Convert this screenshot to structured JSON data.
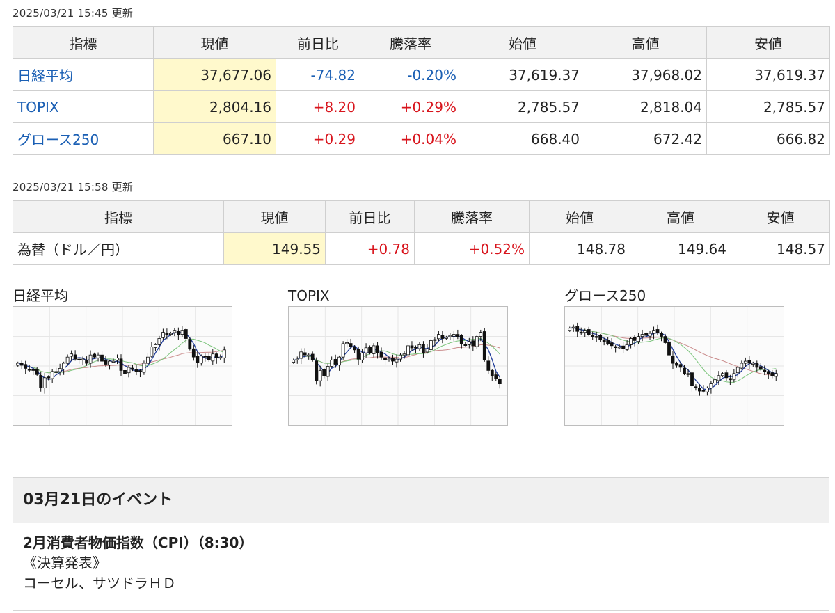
{
  "stock_table": {
    "updated": "2025/03/21 15:45 更新",
    "headers": [
      "指標",
      "現値",
      "前日比",
      "騰落率",
      "始値",
      "高値",
      "安値"
    ],
    "rows": [
      {
        "name": "日経平均",
        "current": "37,677.06",
        "change": "-74.82",
        "rate": "-0.20%",
        "open": "37,619.37",
        "high": "37,968.02",
        "low": "37,619.37"
      },
      {
        "name": "TOPIX",
        "current": "2,804.16",
        "change": "+8.20",
        "rate": "+0.29%",
        "open": "2,785.57",
        "high": "2,818.04",
        "low": "2,785.57"
      },
      {
        "name": "グロース250",
        "current": "667.10",
        "change": "+0.29",
        "rate": "+0.04%",
        "open": "668.40",
        "high": "672.42",
        "low": "666.82"
      }
    ]
  },
  "fx_table": {
    "updated": "2025/03/21 15:58 更新",
    "headers": [
      "指標",
      "現値",
      "前日比",
      "騰落率",
      "始値",
      "高値",
      "安値"
    ],
    "rows": [
      {
        "name": "為替（ドル／円）",
        "current": "149.55",
        "change": "+0.78",
        "rate": "+0.52%",
        "open": "148.78",
        "high": "149.64",
        "low": "148.57"
      }
    ]
  },
  "colors": {
    "up": "#d8141c",
    "down": "#1a5fb4",
    "current_bg": "#fff9cc",
    "ma_short": "#1f3b99",
    "ma_mid": "#7cc47c",
    "ma_long": "#c98a8a"
  },
  "chart_data": [
    {
      "type": "candlestick",
      "title": "日経平均",
      "close": [
        52,
        50,
        47,
        46,
        45,
        41,
        28,
        38,
        38,
        44,
        43,
        47,
        52,
        58,
        61,
        56,
        55,
        56,
        52,
        60,
        58,
        60,
        54,
        51,
        54,
        54,
        57,
        45,
        42,
        48,
        46,
        44,
        44,
        52,
        58,
        68,
        70,
        76,
        82,
        80,
        81,
        84,
        80,
        84,
        76,
        66,
        58,
        53,
        59,
        58,
        55,
        61,
        57,
        58,
        65
      ]
    },
    {
      "type": "candlestick",
      "title": "TOPIX",
      "close": [
        55,
        56,
        63,
        60,
        60,
        55,
        35,
        45,
        40,
        49,
        55,
        51,
        58,
        71,
        72,
        68,
        65,
        56,
        62,
        67,
        62,
        69,
        62,
        58,
        55,
        56,
        54,
        56,
        60,
        61,
        69,
        67,
        67,
        70,
        62,
        66,
        74,
        75,
        80,
        76,
        77,
        79,
        80,
        78,
        71,
        70,
        73,
        69,
        78,
        82,
        55,
        45,
        40,
        37,
        32
      ]
    },
    {
      "type": "candlestick",
      "title": "グロース250",
      "close": [
        86,
        87,
        83,
        82,
        84,
        80,
        78,
        78,
        75,
        74,
        71,
        69,
        68,
        68,
        66,
        70,
        76,
        74,
        78,
        80,
        79,
        81,
        84,
        82,
        78,
        72,
        60,
        52,
        50,
        48,
        42,
        42,
        30,
        28,
        25,
        25,
        28,
        32,
        36,
        40,
        42,
        38,
        36,
        42,
        48,
        52,
        54,
        52,
        52,
        48,
        46,
        44,
        42,
        40,
        42
      ]
    }
  ],
  "events": {
    "heading": "03月21日のイベント",
    "item_title": "2月消費者物価指数（CPI）（8:30）",
    "earnings_label": "《決算発表》",
    "earnings_companies": "コーセル、サツドラＨＤ"
  }
}
